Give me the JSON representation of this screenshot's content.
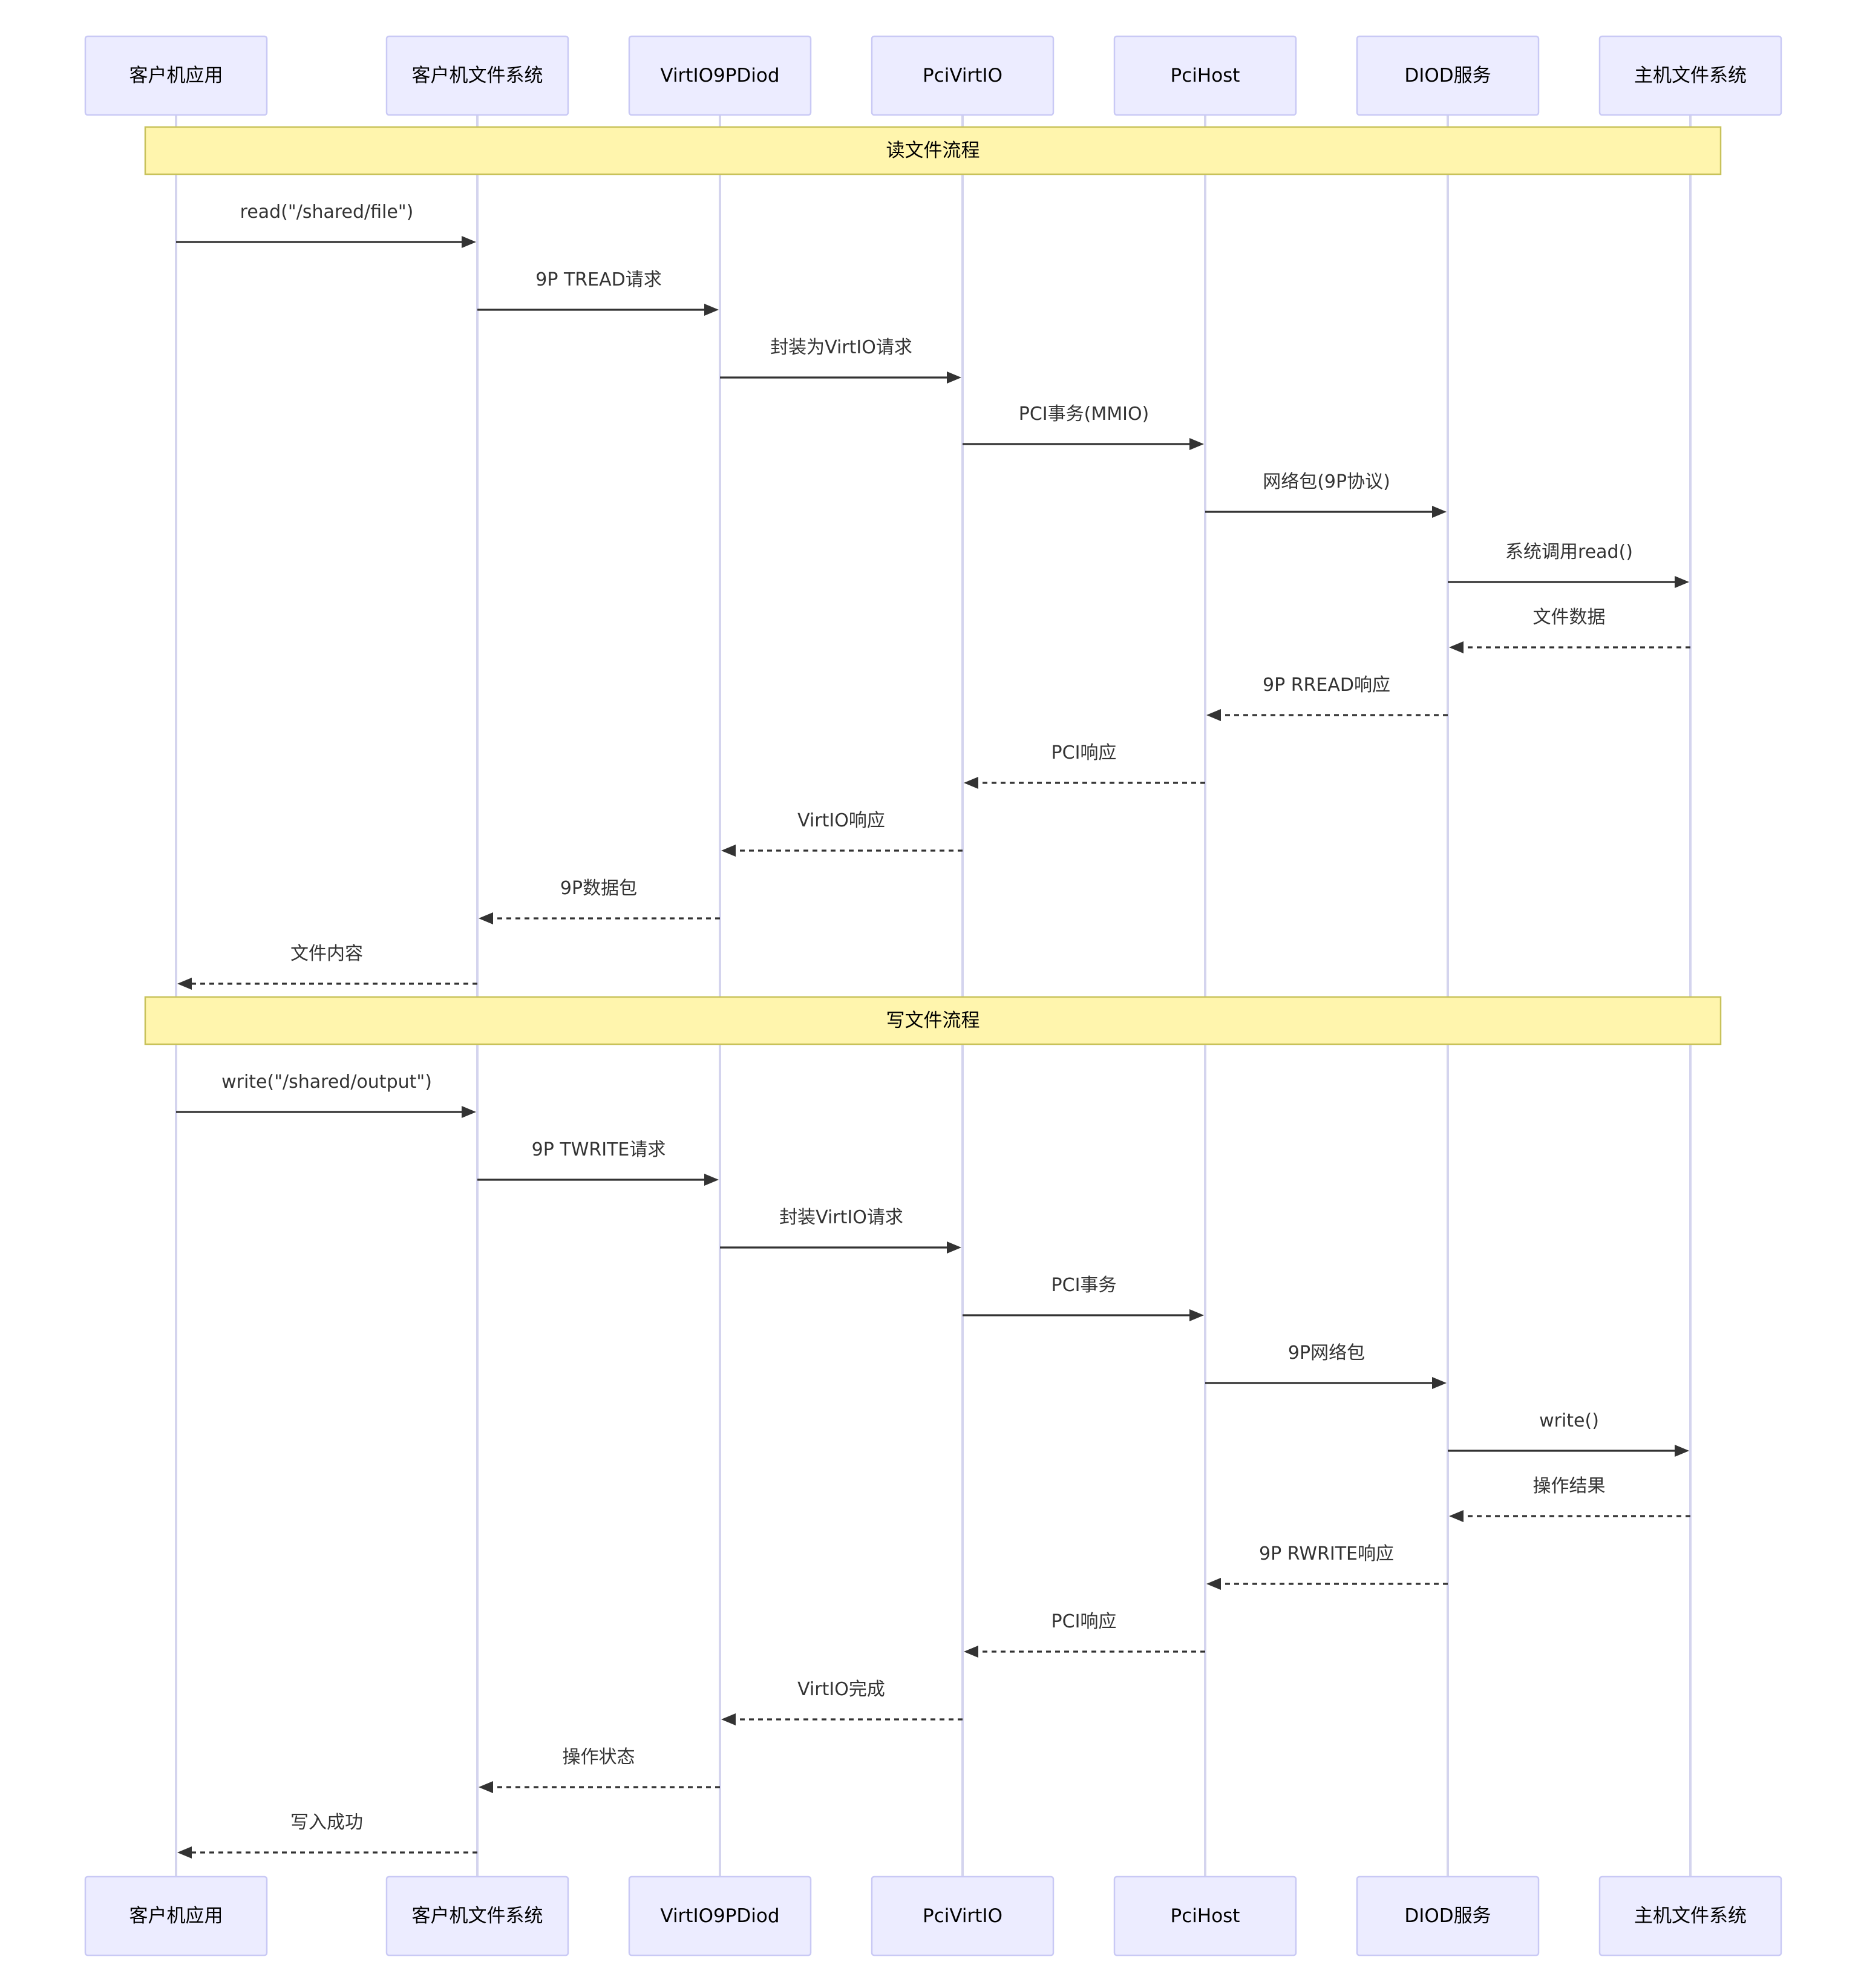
{
  "participants": [
    {
      "id": "guest_app",
      "label": "客户机应用"
    },
    {
      "id": "guest_fs",
      "label": "客户机文件系统"
    },
    {
      "id": "virtio9p",
      "label": "VirtIO9PDiod"
    },
    {
      "id": "pcivirtio",
      "label": "PciVirtIO"
    },
    {
      "id": "pcihost",
      "label": "PciHost"
    },
    {
      "id": "diod",
      "label": "DIOD服务"
    },
    {
      "id": "host_fs",
      "label": "主机文件系统"
    }
  ],
  "sections": [
    {
      "label": "读文件流程",
      "after_message": -1
    },
    {
      "label": "写文件流程",
      "after_message": 11
    }
  ],
  "messages": [
    {
      "from": 0,
      "to": 1,
      "label": "read(\"/shared/file\")",
      "style": "solid"
    },
    {
      "from": 1,
      "to": 2,
      "label": "9P TREAD请求",
      "style": "solid"
    },
    {
      "from": 2,
      "to": 3,
      "label": "封装为VirtIO请求",
      "style": "solid"
    },
    {
      "from": 3,
      "to": 4,
      "label": "PCI事务(MMIO)",
      "style": "solid"
    },
    {
      "from": 4,
      "to": 5,
      "label": "网络包(9P协议)",
      "style": "solid"
    },
    {
      "from": 5,
      "to": 6,
      "label": "系统调用read()",
      "style": "solid"
    },
    {
      "from": 6,
      "to": 5,
      "label": "文件数据",
      "style": "dashed"
    },
    {
      "from": 5,
      "to": 4,
      "label": "9P RREAD响应",
      "style": "dashed"
    },
    {
      "from": 4,
      "to": 3,
      "label": "PCI响应",
      "style": "dashed"
    },
    {
      "from": 3,
      "to": 2,
      "label": "VirtIO响应",
      "style": "dashed"
    },
    {
      "from": 2,
      "to": 1,
      "label": "9P数据包",
      "style": "dashed"
    },
    {
      "from": 1,
      "to": 0,
      "label": "文件内容",
      "style": "dashed"
    },
    {
      "from": 0,
      "to": 1,
      "label": "write(\"/shared/output\")",
      "style": "solid"
    },
    {
      "from": 1,
      "to": 2,
      "label": "9P TWRITE请求",
      "style": "solid"
    },
    {
      "from": 2,
      "to": 3,
      "label": "封装VirtIO请求",
      "style": "solid"
    },
    {
      "from": 3,
      "to": 4,
      "label": "PCI事务",
      "style": "solid"
    },
    {
      "from": 4,
      "to": 5,
      "label": "9P网络包",
      "style": "solid"
    },
    {
      "from": 5,
      "to": 6,
      "label": "write()",
      "style": "solid"
    },
    {
      "from": 6,
      "to": 5,
      "label": "操作结果",
      "style": "dashed"
    },
    {
      "from": 5,
      "to": 4,
      "label": "9P RWRITE响应",
      "style": "dashed"
    },
    {
      "from": 4,
      "to": 3,
      "label": "PCI响应",
      "style": "dashed"
    },
    {
      "from": 3,
      "to": 2,
      "label": "VirtIO完成",
      "style": "dashed"
    },
    {
      "from": 2,
      "to": 1,
      "label": "操作状态",
      "style": "dashed"
    },
    {
      "from": 1,
      "to": 0,
      "label": "写入成功",
      "style": "dashed"
    }
  ],
  "colors": {
    "actor_fill": "#ECECFF",
    "actor_stroke": "#C9C9F5",
    "lifeline": "#D4D4EE",
    "note_fill": "#FFF5AD",
    "note_stroke": "#C8C25A",
    "message": "#333333"
  }
}
